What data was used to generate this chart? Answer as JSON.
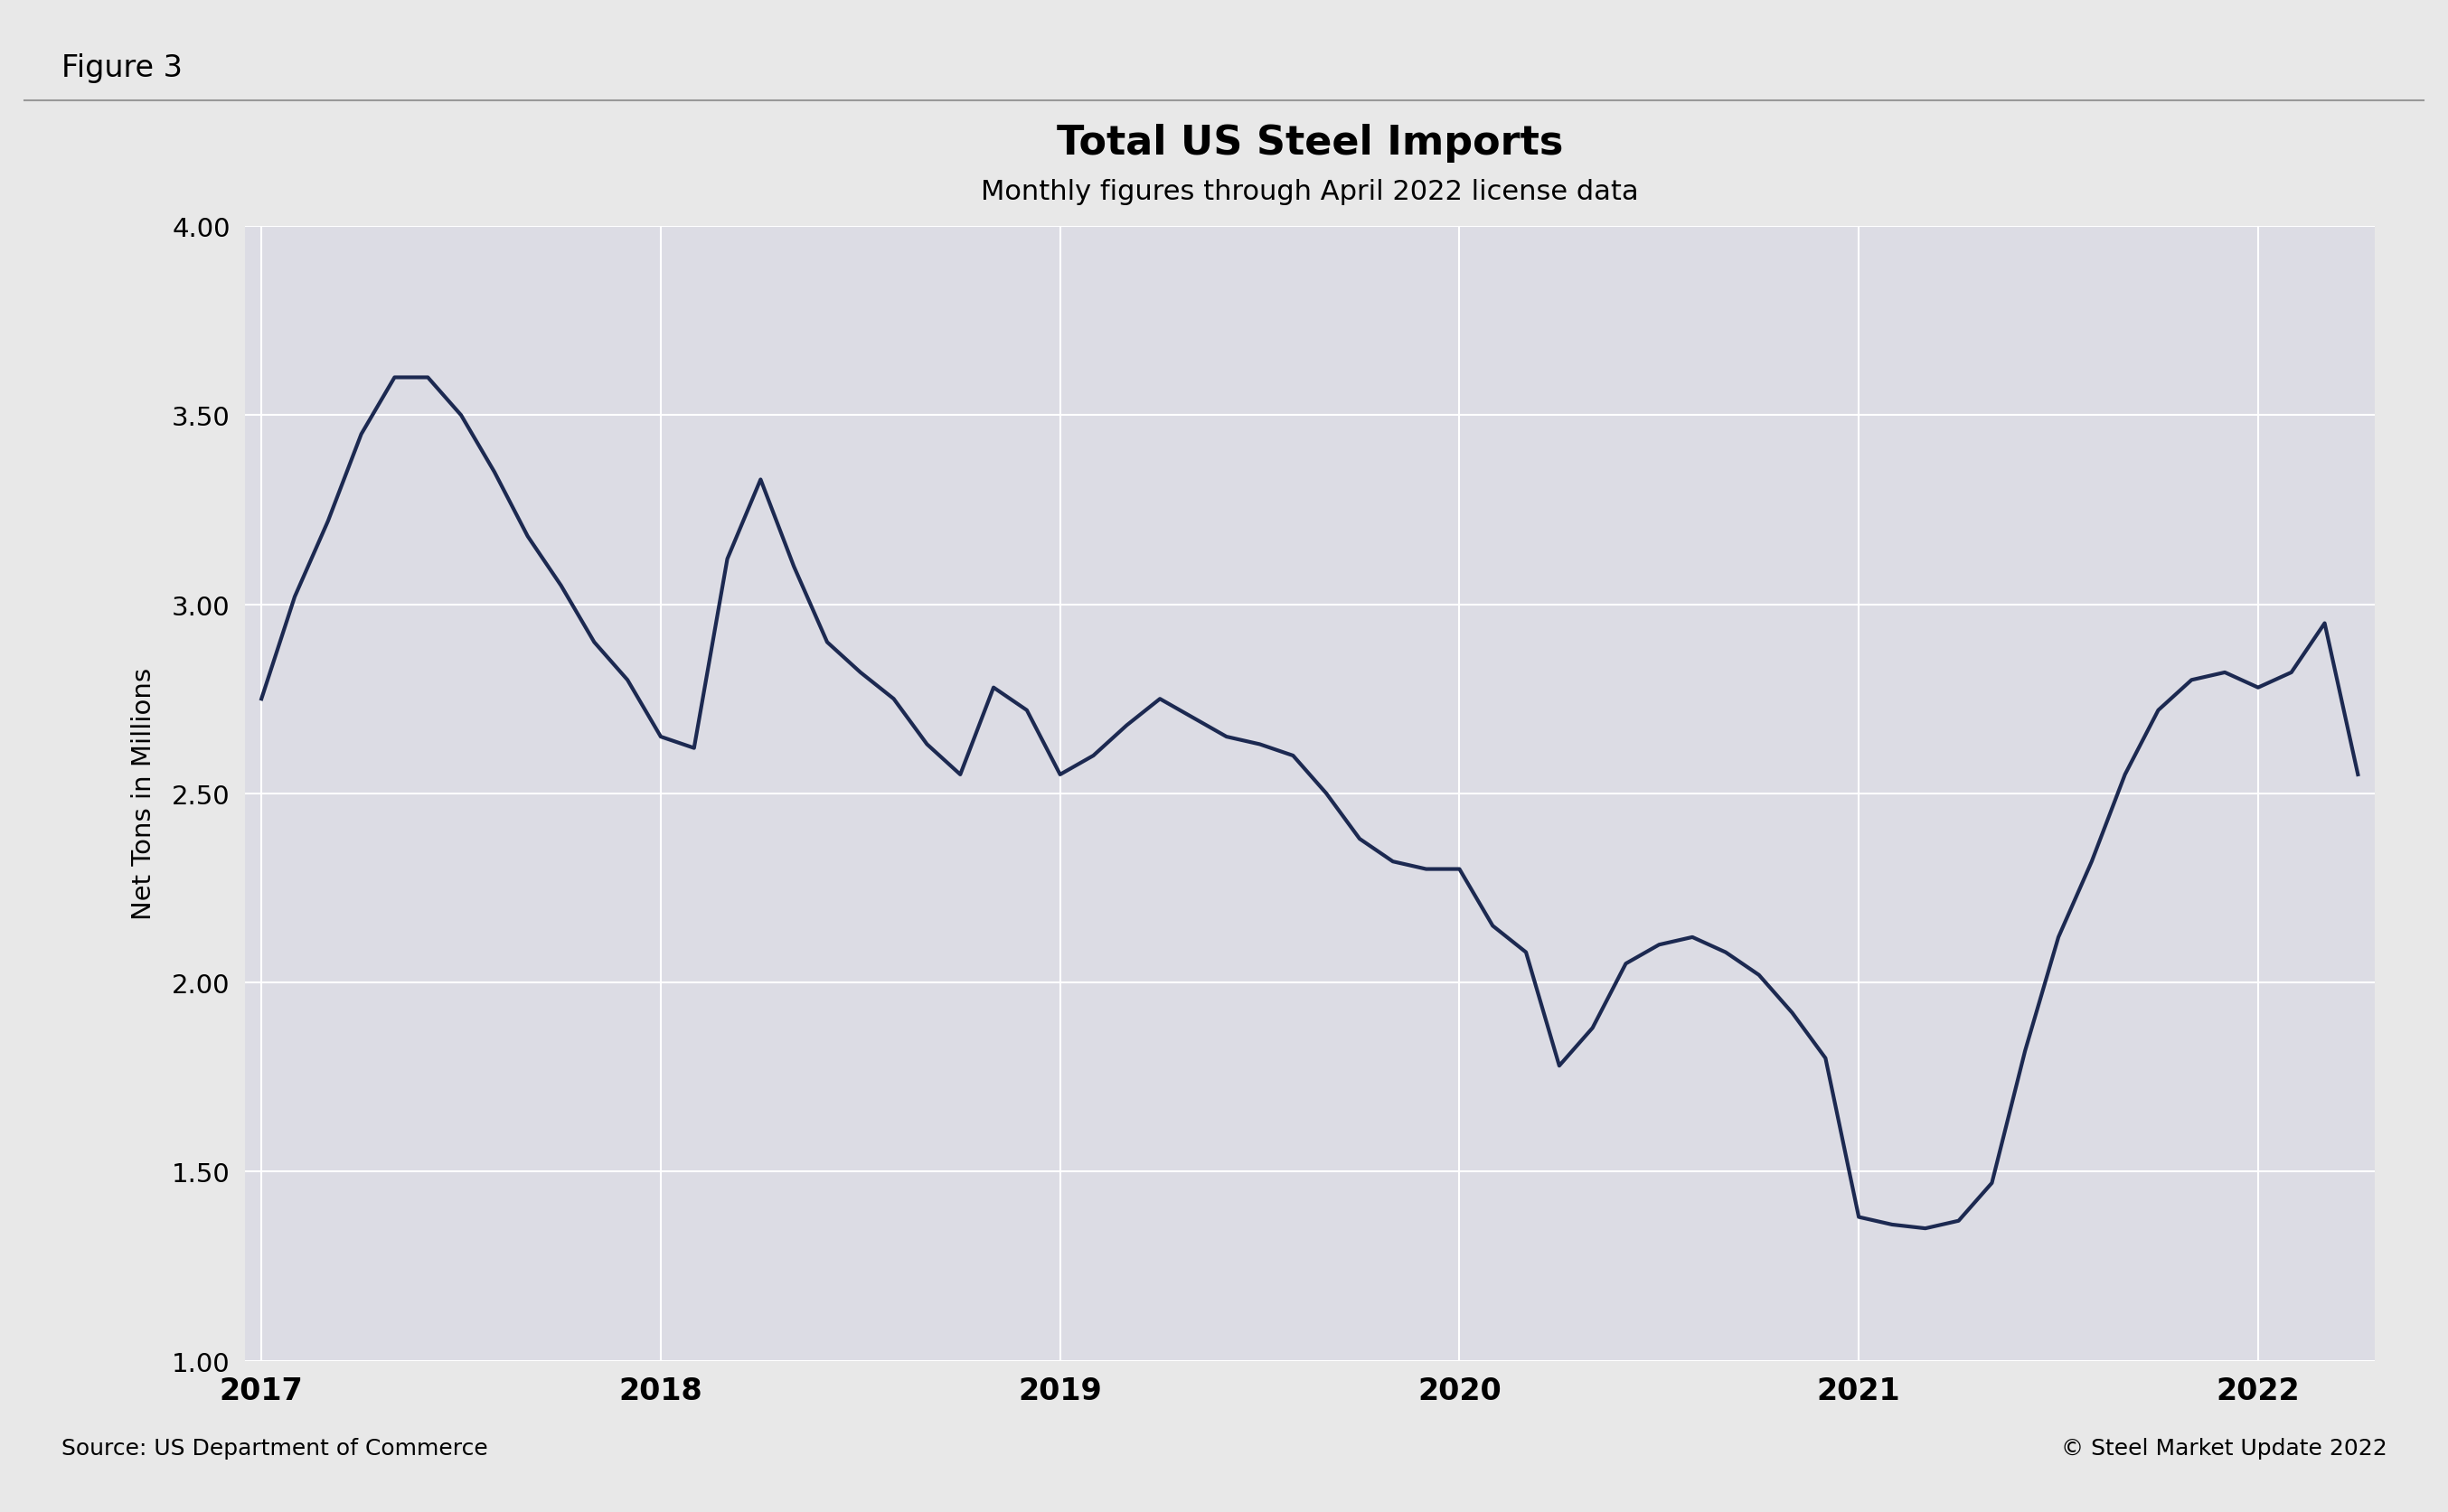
{
  "title": "Total US Steel Imports",
  "subtitle": "Monthly figures through April 2022 license data",
  "ylabel": "Net Tons in Millions",
  "source_left": "Source: US Department of Commerce",
  "source_right": "© Steel Market Update 2022",
  "figure_label": "Figure 3",
  "line_color": "#1c2951",
  "line_width": 3.0,
  "outer_bg_color": "#e8e8e8",
  "inner_bg_color": "#f5f5f5",
  "plot_bg_color": "#dcdce4",
  "ylim": [
    1.0,
    4.0
  ],
  "yticks": [
    1.0,
    1.5,
    2.0,
    2.5,
    3.0,
    3.5,
    4.0
  ],
  "values": [
    2.75,
    3.02,
    3.22,
    3.45,
    3.6,
    3.6,
    3.5,
    3.35,
    3.18,
    3.05,
    2.9,
    2.8,
    2.65,
    2.62,
    3.12,
    3.33,
    3.1,
    2.9,
    2.82,
    2.75,
    2.63,
    2.55,
    2.78,
    2.72,
    2.55,
    2.6,
    2.68,
    2.75,
    2.7,
    2.65,
    2.63,
    2.6,
    2.5,
    2.38,
    2.32,
    2.3,
    2.3,
    2.15,
    2.08,
    1.78,
    1.88,
    2.05,
    2.1,
    2.12,
    2.08,
    2.02,
    1.92,
    1.8,
    1.38,
    1.36,
    1.35,
    1.37,
    1.47,
    1.82,
    2.12,
    2.32,
    2.55,
    2.72,
    2.8,
    2.82,
    2.78,
    2.82,
    2.95,
    2.55
  ],
  "xtick_positions": [
    0,
    12,
    24,
    36,
    48,
    60
  ],
  "xtick_labels": [
    "2017",
    "2018",
    "2019",
    "2020",
    "2021",
    "2022"
  ]
}
